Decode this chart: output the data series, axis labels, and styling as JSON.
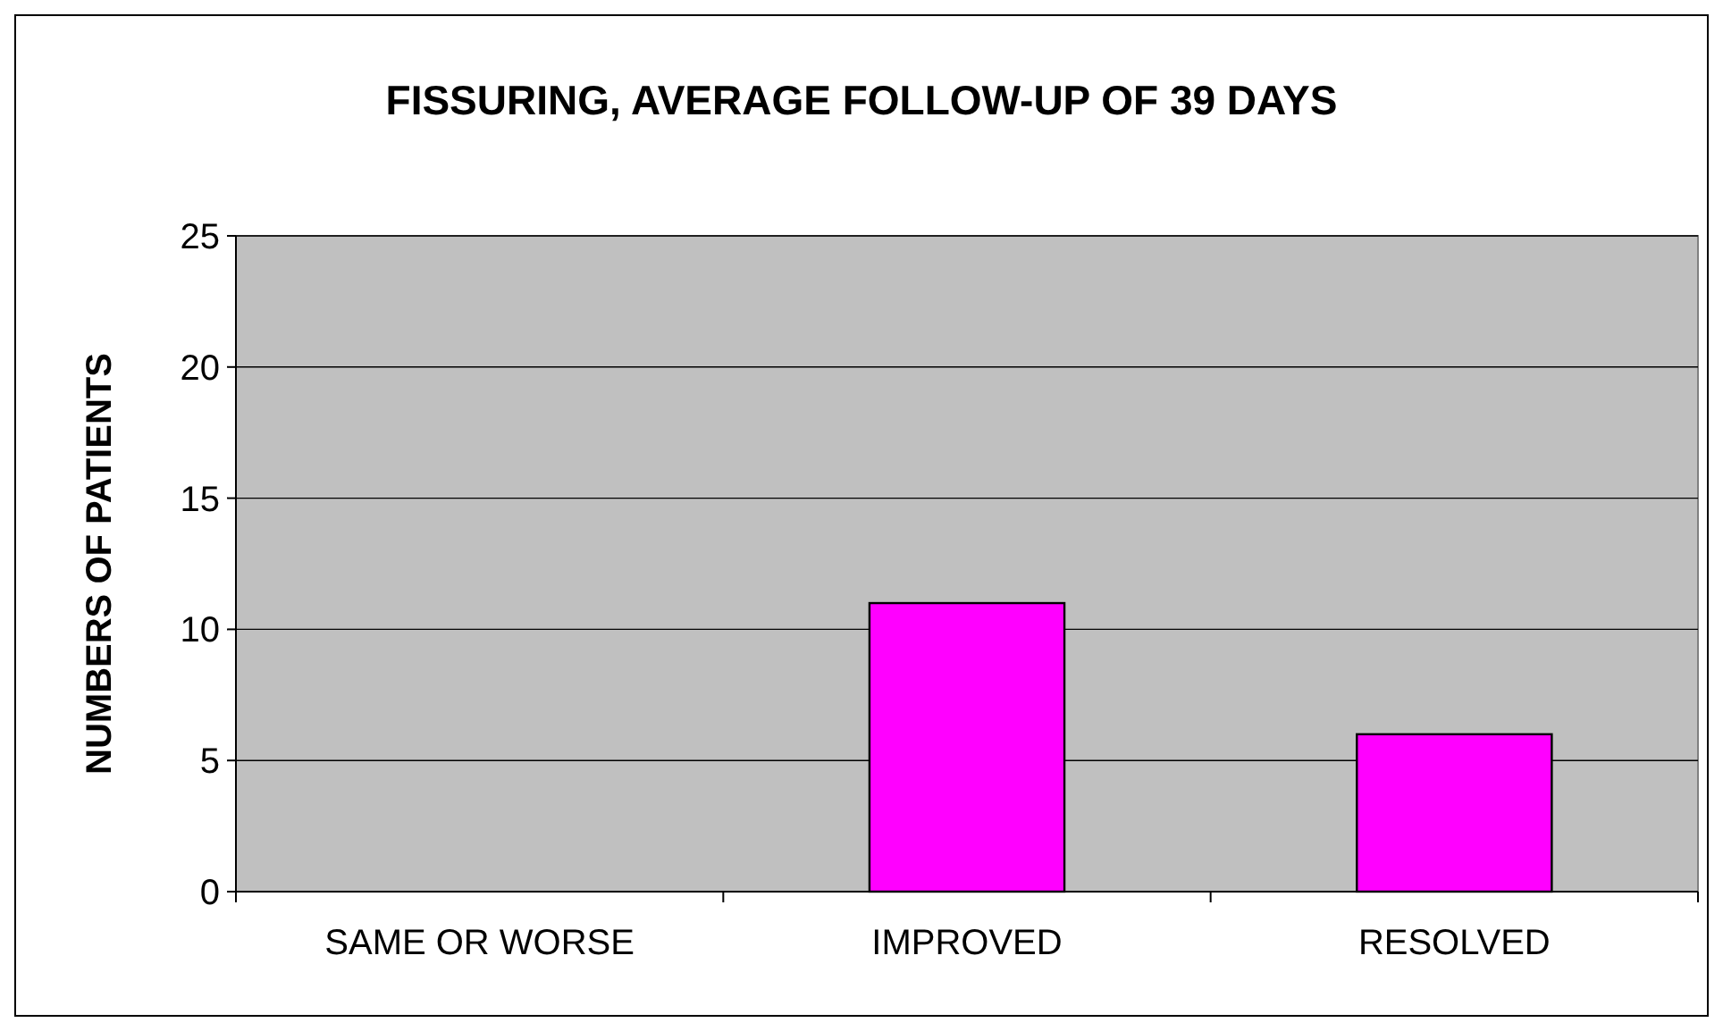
{
  "chart_data": {
    "type": "bar",
    "title": "FISSURING, AVERAGE FOLLOW-UP OF 39 DAYS",
    "ylabel": "NUMBERS OF PATIENTS",
    "categories": [
      "SAME OR WORSE",
      "IMPROVED",
      "RESOLVED"
    ],
    "values": [
      0,
      11,
      6
    ],
    "color": "#ff00ff",
    "ylim": [
      0,
      25
    ],
    "yticks": [
      0,
      5,
      10,
      15,
      20,
      25
    ],
    "grid": "y"
  }
}
